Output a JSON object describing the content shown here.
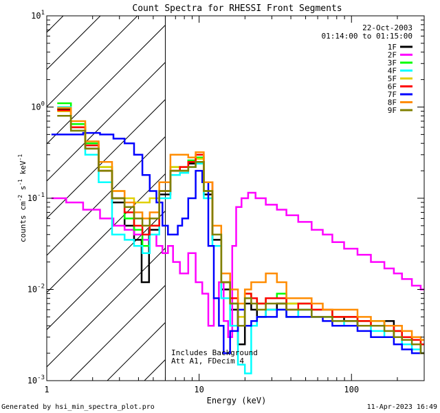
{
  "chart_data": {
    "type": "line",
    "title": "Count Spectra for RHESSI Front Segments",
    "xlabel": "Energy (keV)",
    "ylabel_html": "counts cm⁻² s⁻¹ keV⁻¹",
    "ylabel": {
      "base1": "counts cm",
      "exp1": "-2",
      "base2": " s",
      "exp2": "-1",
      "base3": " keV",
      "exp3": "-1"
    },
    "x_scale": "log",
    "y_scale": "log",
    "xlim": [
      1,
      300
    ],
    "ylim": [
      0.001,
      10
    ],
    "x_ticks": [
      {
        "value": 1,
        "label": "1"
      },
      {
        "value": 10,
        "label": "10"
      },
      {
        "value": 100,
        "label": "100"
      }
    ],
    "y_ticks": [
      {
        "value": 0.001,
        "base": "10",
        "exp": "-3"
      },
      {
        "value": 0.01,
        "base": "10",
        "exp": "-2"
      },
      {
        "value": 0.1,
        "base": "10",
        "exp": "-1"
      },
      {
        "value": 1,
        "base": "10",
        "exp": "0"
      },
      {
        "value": 10,
        "base": "10",
        "exp": "1"
      }
    ],
    "hatch_region_xmax": 6,
    "date": "22-Oct-2003",
    "time_range": "01:14:00 to 01:15:00",
    "annotations": [
      "Includes Background",
      "Att A1, FDecim 4"
    ],
    "series": [
      {
        "name": "1F",
        "color": "#000000",
        "x": [
          1.3,
          1.6,
          2.0,
          2.4,
          3.0,
          3.5,
          4.0,
          4.4,
          5.0,
          6.0,
          7.0,
          8.0,
          9.0,
          10.0,
          11.5,
          13.0,
          15.0,
          17.0,
          19.0,
          21.0,
          23.0,
          25.0,
          30.0,
          35.0,
          40.0,
          50.0,
          60.0,
          70.0,
          80.0,
          100.0,
          120.0,
          150.0,
          180.0,
          200.0,
          230.0,
          270.0,
          300.0
        ],
        "y": [
          0.95,
          0.6,
          0.35,
          0.2,
          0.09,
          0.05,
          0.035,
          0.012,
          0.045,
          0.11,
          0.2,
          0.2,
          0.24,
          0.25,
          0.11,
          0.035,
          0.01,
          0.006,
          0.0025,
          0.007,
          0.006,
          0.005,
          0.006,
          0.007,
          0.005,
          0.006,
          0.005,
          0.005,
          0.005,
          0.0045,
          0.004,
          0.004,
          0.0045,
          0.003,
          0.0025,
          0.0025,
          0.002
        ]
      },
      {
        "name": "2F",
        "color": "#ff00ff",
        "x": [
          1.2,
          1.5,
          2.0,
          2.5,
          3.0,
          3.5,
          4.0,
          4.5,
          5.0,
          5.5,
          6.0,
          6.5,
          7.0,
          8.0,
          9.0,
          10.0,
          11.0,
          12.0,
          13.0,
          14.0,
          15.0,
          16.0,
          17.0,
          18.0,
          20.0,
          22.0,
          25.0,
          30.0,
          35.0,
          40.0,
          50.0,
          60.0,
          70.0,
          80.0,
          100.0,
          120.0,
          150.0,
          180.0,
          200.0,
          230.0,
          270.0,
          300.0
        ],
        "y": [
          0.1,
          0.09,
          0.075,
          0.06,
          0.05,
          0.045,
          0.04,
          0.035,
          0.04,
          0.03,
          0.025,
          0.03,
          0.02,
          0.015,
          0.025,
          0.012,
          0.009,
          0.004,
          0.008,
          0.012,
          0.0045,
          0.003,
          0.03,
          0.08,
          0.1,
          0.115,
          0.1,
          0.085,
          0.075,
          0.065,
          0.055,
          0.045,
          0.04,
          0.033,
          0.028,
          0.024,
          0.02,
          0.017,
          0.015,
          0.013,
          0.011,
          0.01
        ]
      },
      {
        "name": "3F",
        "color": "#00ff00",
        "x": [
          1.3,
          1.6,
          2.0,
          2.4,
          3.0,
          3.5,
          4.0,
          4.5,
          5.0,
          6.0,
          7.0,
          8.0,
          9.0,
          10.0,
          11.5,
          13.0,
          15.0,
          17.0,
          19.0,
          21.0,
          23.0,
          25.0,
          30.0,
          35.0,
          40.0,
          50.0,
          60.0,
          70.0,
          80.0,
          100.0,
          120.0,
          150.0,
          180.0,
          200.0,
          230.0,
          270.0,
          300.0
        ],
        "y": [
          1.1,
          0.65,
          0.4,
          0.22,
          0.1,
          0.06,
          0.045,
          0.03,
          0.05,
          0.12,
          0.22,
          0.2,
          0.26,
          0.28,
          0.12,
          0.04,
          0.012,
          0.007,
          0.004,
          0.009,
          0.008,
          0.007,
          0.008,
          0.009,
          0.007,
          0.007,
          0.006,
          0.006,
          0.005,
          0.005,
          0.0045,
          0.0045,
          0.004,
          0.0035,
          0.003,
          0.0028,
          0.0025
        ]
      },
      {
        "name": "4F",
        "color": "#00ffff",
        "x": [
          1.3,
          1.6,
          2.0,
          2.4,
          3.0,
          3.5,
          4.0,
          4.5,
          5.0,
          6.0,
          7.0,
          8.0,
          9.0,
          10.0,
          11.5,
          13.0,
          15.0,
          17.0,
          19.0,
          21.0,
          23.0,
          25.0,
          30.0,
          35.0,
          40.0,
          50.0,
          60.0,
          70.0,
          80.0,
          100.0,
          120.0,
          150.0,
          180.0,
          200.0,
          230.0,
          270.0,
          300.0
        ],
        "y": [
          1.0,
          0.55,
          0.3,
          0.15,
          0.04,
          0.035,
          0.03,
          0.025,
          0.04,
          0.1,
          0.18,
          0.19,
          0.22,
          0.24,
          0.1,
          0.03,
          0.008,
          0.004,
          0.0015,
          0.0012,
          0.004,
          0.005,
          0.006,
          0.006,
          0.005,
          0.006,
          0.005,
          0.005,
          0.0045,
          0.004,
          0.004,
          0.0035,
          0.003,
          0.003,
          0.0025,
          0.0022,
          0.002
        ]
      },
      {
        "name": "5F",
        "color": "#e0d000",
        "x": [
          1.3,
          1.6,
          2.0,
          2.4,
          3.0,
          3.5,
          4.0,
          4.5,
          5.0,
          6.0,
          7.0,
          8.0,
          9.0,
          10.0,
          11.5,
          13.0,
          15.0,
          17.0,
          19.0,
          21.0,
          23.0,
          25.0,
          30.0,
          35.0,
          40.0,
          50.0,
          60.0,
          70.0,
          80.0,
          100.0,
          120.0,
          150.0,
          180.0,
          200.0,
          230.0,
          270.0,
          300.0
        ],
        "y": [
          0.9,
          0.6,
          0.38,
          0.22,
          0.12,
          0.1,
          0.09,
          0.09,
          0.1,
          0.15,
          0.22,
          0.22,
          0.25,
          0.27,
          0.12,
          0.04,
          0.012,
          0.008,
          0.005,
          0.009,
          0.008,
          0.007,
          0.008,
          0.008,
          0.007,
          0.007,
          0.006,
          0.006,
          0.005,
          0.005,
          0.0045,
          0.004,
          0.004,
          0.0035,
          0.003,
          0.0028,
          0.0025
        ]
      },
      {
        "name": "6F",
        "color": "#ff0000",
        "x": [
          1.3,
          1.6,
          2.0,
          2.4,
          3.0,
          3.5,
          4.0,
          4.5,
          5.0,
          6.0,
          7.0,
          8.0,
          9.0,
          10.0,
          11.5,
          13.0,
          15.0,
          17.0,
          19.0,
          21.0,
          23.0,
          25.0,
          30.0,
          35.0,
          40.0,
          50.0,
          60.0,
          70.0,
          80.0,
          100.0,
          120.0,
          150.0,
          180.0,
          200.0,
          230.0,
          270.0,
          300.0
        ],
        "y": [
          0.92,
          0.6,
          0.38,
          0.2,
          0.1,
          0.07,
          0.05,
          0.04,
          0.05,
          0.12,
          0.2,
          0.22,
          0.25,
          0.3,
          0.15,
          0.04,
          0.012,
          0.008,
          0.004,
          0.009,
          0.008,
          0.007,
          0.008,
          0.008,
          0.006,
          0.007,
          0.006,
          0.006,
          0.005,
          0.005,
          0.0045,
          0.004,
          0.004,
          0.0035,
          0.003,
          0.0028,
          0.0025
        ]
      },
      {
        "name": "7F",
        "color": "#0000ff",
        "x": [
          1.2,
          1.5,
          2.0,
          2.5,
          3.0,
          3.5,
          4.0,
          4.5,
          5.0,
          5.5,
          6.0,
          6.5,
          7.0,
          7.5,
          8.0,
          9.0,
          10.0,
          11.0,
          12.0,
          13.0,
          14.0,
          15.0,
          17.0,
          19.0,
          21.0,
          23.0,
          25.0,
          30.0,
          35.0,
          40.0,
          50.0,
          60.0,
          70.0,
          80.0,
          100.0,
          120.0,
          150.0,
          180.0,
          200.0,
          230.0,
          270.0,
          300.0
        ],
        "y": [
          0.5,
          0.5,
          0.52,
          0.5,
          0.45,
          0.4,
          0.3,
          0.18,
          0.12,
          0.09,
          0.05,
          0.04,
          0.04,
          0.05,
          0.06,
          0.1,
          0.2,
          0.15,
          0.03,
          0.008,
          0.004,
          0.002,
          0.0035,
          0.006,
          0.004,
          0.0045,
          0.005,
          0.005,
          0.006,
          0.005,
          0.005,
          0.005,
          0.0045,
          0.004,
          0.004,
          0.0035,
          0.003,
          0.003,
          0.0025,
          0.0022,
          0.002,
          0.002
        ]
      },
      {
        "name": "8F",
        "color": "#ff8c00",
        "x": [
          1.3,
          1.6,
          2.0,
          2.4,
          3.0,
          3.5,
          4.0,
          4.5,
          5.0,
          6.0,
          7.0,
          8.0,
          9.0,
          10.0,
          11.5,
          13.0,
          15.0,
          17.0,
          19.0,
          21.0,
          23.0,
          25.0,
          30.0,
          35.0,
          40.0,
          50.0,
          60.0,
          70.0,
          80.0,
          100.0,
          120.0,
          150.0,
          180.0,
          200.0,
          230.0,
          270.0,
          300.0
        ],
        "y": [
          0.98,
          0.7,
          0.42,
          0.25,
          0.12,
          0.09,
          0.07,
          0.06,
          0.07,
          0.15,
          0.3,
          0.3,
          0.28,
          0.32,
          0.15,
          0.05,
          0.015,
          0.01,
          0.007,
          0.01,
          0.012,
          0.012,
          0.015,
          0.012,
          0.008,
          0.008,
          0.007,
          0.006,
          0.006,
          0.006,
          0.005,
          0.0045,
          0.004,
          0.004,
          0.0035,
          0.003,
          0.0028
        ]
      },
      {
        "name": "9F",
        "color": "#808000",
        "x": [
          1.3,
          1.6,
          2.0,
          2.4,
          3.0,
          3.5,
          4.0,
          4.5,
          5.0,
          6.0,
          7.0,
          8.0,
          9.0,
          10.0,
          11.5,
          13.0,
          15.0,
          17.0,
          19.0,
          21.0,
          23.0,
          25.0,
          30.0,
          35.0,
          40.0,
          50.0,
          60.0,
          70.0,
          80.0,
          100.0,
          120.0,
          150.0,
          180.0,
          200.0,
          230.0,
          270.0,
          300.0
        ],
        "y": [
          0.8,
          0.55,
          0.35,
          0.2,
          0.1,
          0.08,
          0.06,
          0.05,
          0.06,
          0.12,
          0.2,
          0.2,
          0.22,
          0.25,
          0.12,
          0.04,
          0.012,
          0.007,
          0.004,
          0.008,
          0.007,
          0.006,
          0.007,
          0.007,
          0.006,
          0.006,
          0.005,
          0.005,
          0.0045,
          0.0045,
          0.004,
          0.004,
          0.0035,
          0.003,
          0.0028,
          0.0025,
          0.002
        ]
      }
    ]
  },
  "footer": {
    "generated_by": "Generated by hsi_min_spectra_plot.pro",
    "timestamp": "11-Apr-2023 16:49"
  }
}
